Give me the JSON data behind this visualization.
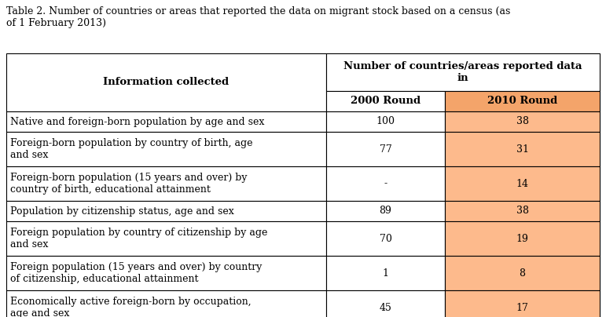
{
  "title": "Table 2. Number of countries or areas that reported the data on migrant stock based on a census (as\nof 1 February 2013)",
  "col_header_left": "Information collected",
  "col_header_mid": "Number of countries/areas reported data\nin",
  "col_header_2000": "2000 Round",
  "col_header_2010": "2010 Round",
  "rows": [
    {
      "label": "Native and foreign-born population by age and sex",
      "val2000": "100",
      "val2010": "38",
      "multiline": false
    },
    {
      "label": "Foreign-born population by country of birth, age\nand sex",
      "val2000": "77",
      "val2010": "31",
      "multiline": true
    },
    {
      "label": "Foreign-born population (15 years and over) by\ncountry of birth, educational attainment",
      "val2000": "-",
      "val2010": "14",
      "multiline": true
    },
    {
      "label": "Population by citizenship status, age and sex",
      "val2000": "89",
      "val2010": "38",
      "multiline": false
    },
    {
      "label": "Foreign population by country of citizenship by age\nand sex",
      "val2000": "70",
      "val2010": "19",
      "multiline": true
    },
    {
      "label": "Foreign population (15 years and over) by country\nof citizenship, educational attainment",
      "val2000": "1",
      "val2010": "8",
      "multiline": true
    },
    {
      "label": "Economically active foreign-born by occupation,\nage and sex",
      "val2000": "45",
      "val2010": "17",
      "multiline": true
    }
  ],
  "color_2010_bg": "#FDBA8C",
  "color_2010_header": "#F4A46A",
  "color_white": "#FFFFFF",
  "color_border": "#000000",
  "title_fontsize": 9.0,
  "cell_fontsize": 9.0,
  "header_fontsize": 9.5,
  "fig_width": 7.71,
  "fig_height": 4.04,
  "dpi": 100
}
